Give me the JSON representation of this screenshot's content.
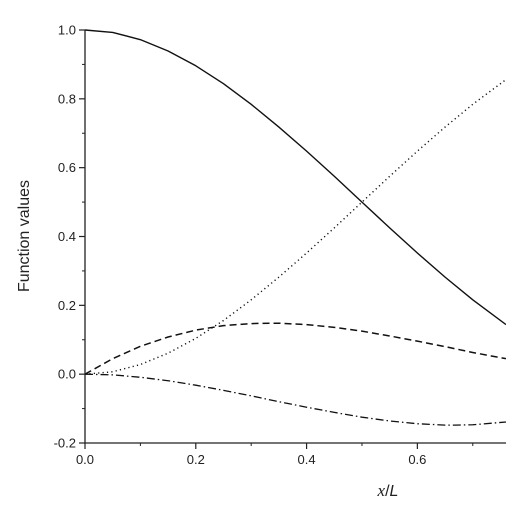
{
  "chart_data": {
    "type": "line",
    "title": "",
    "xlabel": {
      "var": "x",
      "sep": "/",
      "den": "L"
    },
    "ylabel": "Function values",
    "xlim": [
      0,
      0.76
    ],
    "ylim": [
      -0.2,
      1.0
    ],
    "xticks": [
      "0.0",
      "0.2",
      "0.4",
      "0.6"
    ],
    "xtick_values": [
      0,
      0.2,
      0.4,
      0.6
    ],
    "yticks": [
      "-0.2",
      "0.0",
      "0.2",
      "0.4",
      "0.6",
      "0.8",
      "1.0"
    ],
    "ytick_values": [
      -0.2,
      0,
      0.2,
      0.4,
      0.6,
      0.8,
      1.0
    ],
    "grid": false,
    "legend": "none",
    "series": [
      {
        "style": "solid",
        "x": [
          0,
          0.05,
          0.1,
          0.15,
          0.2,
          0.25,
          0.3,
          0.35,
          0.4,
          0.45,
          0.5,
          0.55,
          0.6,
          0.65,
          0.7,
          0.76
        ],
        "y": [
          1.0,
          0.993,
          0.972,
          0.939,
          0.896,
          0.844,
          0.784,
          0.718,
          0.648,
          0.575,
          0.5,
          0.425,
          0.352,
          0.282,
          0.216,
          0.144
        ]
      },
      {
        "style": "dotted",
        "x": [
          0,
          0.05,
          0.1,
          0.15,
          0.2,
          0.25,
          0.3,
          0.35,
          0.4,
          0.45,
          0.5,
          0.55,
          0.6,
          0.65,
          0.7,
          0.76
        ],
        "y": [
          0.0,
          0.007,
          0.028,
          0.061,
          0.104,
          0.156,
          0.216,
          0.282,
          0.352,
          0.425,
          0.5,
          0.575,
          0.648,
          0.718,
          0.784,
          0.856
        ]
      },
      {
        "style": "dashed",
        "x": [
          0,
          0.05,
          0.1,
          0.15,
          0.2,
          0.25,
          0.3,
          0.333,
          0.35,
          0.4,
          0.45,
          0.5,
          0.55,
          0.6,
          0.65,
          0.7,
          0.76
        ],
        "y": [
          0.0,
          0.045,
          0.081,
          0.108,
          0.128,
          0.141,
          0.147,
          0.148,
          0.148,
          0.144,
          0.136,
          0.125,
          0.111,
          0.096,
          0.08,
          0.063,
          0.045
        ]
      },
      {
        "style": "dashdot",
        "x": [
          0,
          0.05,
          0.1,
          0.15,
          0.2,
          0.25,
          0.3,
          0.35,
          0.4,
          0.45,
          0.5,
          0.55,
          0.6,
          0.65,
          0.667,
          0.7,
          0.76
        ],
        "y": [
          0.0,
          -0.002,
          -0.009,
          -0.019,
          -0.032,
          -0.047,
          -0.063,
          -0.08,
          -0.096,
          -0.111,
          -0.125,
          -0.136,
          -0.144,
          -0.148,
          -0.148,
          -0.147,
          -0.139
        ]
      }
    ]
  }
}
